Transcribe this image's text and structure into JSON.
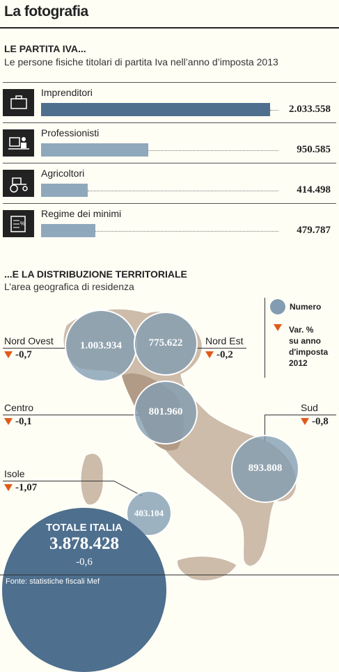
{
  "header": {
    "title": "La fotografia"
  },
  "section1": {
    "title": "LE PARTITA IVA...",
    "subtitle": "Le persone fisiche titolari di partita Iva nell’anno d’imposta 2013"
  },
  "section2": {
    "title": "...E LA DISTRIBUZIONE TERRITORIALE",
    "subtitle": "L’area geografica di residenza"
  },
  "legend": {
    "numero": "Numero",
    "var_line1": "Var. %",
    "var_line2": "su anno",
    "var_line3": "d'imposta",
    "var_line4": "2012"
  },
  "totale": {
    "label": "TOTALE ITALIA",
    "value": "3.878.428",
    "delta": "-0,6"
  },
  "source": "Fonte: statistiche fiscali Mef",
  "colors": {
    "bar_primary": "#4e6f8e",
    "bar_secondary": "#8fa8bc",
    "bubble": "#829cb2",
    "arrow": "#e05a1a",
    "map": "#c9b8a6"
  },
  "chart_data": [
    {
      "type": "bar",
      "categories": [
        "Imprenditori",
        "Professionisti",
        "Agricoltori",
        "Regime dei minimi"
      ],
      "values": [
        2033558,
        950585,
        414498,
        479787
      ],
      "labels": [
        "2.033.558",
        "950.585",
        "414.498",
        "479.787"
      ],
      "icons": [
        "briefcase-icon",
        "professional-desk-icon",
        "tractor-icon",
        "document-percent-icon"
      ]
    },
    {
      "type": "bubble-map",
      "regions": [
        {
          "name": "Nord Ovest",
          "value": 1003934,
          "label": "1.003.934",
          "delta": "-0,7"
        },
        {
          "name": "Nord Est",
          "value": 775622,
          "label": "775.622",
          "delta": "-0,2"
        },
        {
          "name": "Centro",
          "value": 801960,
          "label": "801.960",
          "delta": "-0,1"
        },
        {
          "name": "Sud",
          "value": 893808,
          "label": "893.808",
          "delta": "-0,8"
        },
        {
          "name": "Isole",
          "value": 403104,
          "label": "403.104",
          "delta": "-1,07"
        }
      ]
    }
  ]
}
